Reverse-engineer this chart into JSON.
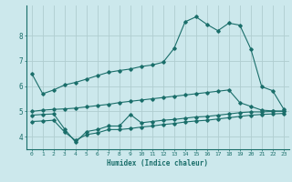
{
  "xlabel": "Humidex (Indice chaleur)",
  "ylabel": "",
  "background_color": "#cce8ec",
  "grid_color": "#b0cdd0",
  "line_color": "#1a6e6a",
  "xlim": [
    -0.5,
    23.5
  ],
  "ylim": [
    3.5,
    9.2
  ],
  "yticks": [
    4,
    5,
    6,
    7,
    8
  ],
  "xticks": [
    0,
    1,
    2,
    3,
    4,
    5,
    6,
    7,
    8,
    9,
    10,
    11,
    12,
    13,
    14,
    15,
    16,
    17,
    18,
    19,
    20,
    21,
    22,
    23
  ],
  "line1_x": [
    0,
    1,
    2,
    3,
    4,
    5,
    6,
    7,
    8,
    9,
    10,
    11,
    12,
    13,
    14,
    15,
    16,
    17,
    18,
    19,
    20,
    21,
    22,
    23
  ],
  "line1_y": [
    6.5,
    5.7,
    5.85,
    6.05,
    6.15,
    6.28,
    6.42,
    6.55,
    6.62,
    6.68,
    6.78,
    6.84,
    6.95,
    7.5,
    8.55,
    8.75,
    8.45,
    8.2,
    8.5,
    8.42,
    7.48,
    5.98,
    5.82,
    5.1
  ],
  "line2_x": [
    0,
    1,
    2,
    3,
    4,
    5,
    6,
    7,
    8,
    9,
    10,
    11,
    12,
    13,
    14,
    15,
    16,
    17,
    18,
    19,
    20,
    21,
    22,
    23
  ],
  "line2_y": [
    5.0,
    5.05,
    5.08,
    5.1,
    5.13,
    5.18,
    5.23,
    5.28,
    5.35,
    5.4,
    5.45,
    5.5,
    5.55,
    5.6,
    5.65,
    5.7,
    5.75,
    5.8,
    5.85,
    5.35,
    5.2,
    5.05,
    5.02,
    5.0
  ],
  "line3_x": [
    0,
    1,
    2,
    3,
    4,
    5,
    6,
    7,
    8,
    9,
    10,
    11,
    12,
    13,
    14,
    15,
    16,
    17,
    18,
    19,
    20,
    21,
    22,
    23
  ],
  "line3_y": [
    4.85,
    4.88,
    4.9,
    4.3,
    3.78,
    4.2,
    4.28,
    4.42,
    4.42,
    4.88,
    4.55,
    4.6,
    4.65,
    4.68,
    4.73,
    4.78,
    4.8,
    4.85,
    4.9,
    4.95,
    4.98,
    4.98,
    5.0,
    5.02
  ],
  "line4_x": [
    0,
    1,
    2,
    3,
    4,
    5,
    6,
    7,
    8,
    9,
    10,
    11,
    12,
    13,
    14,
    15,
    16,
    17,
    18,
    19,
    20,
    21,
    22,
    23
  ],
  "line4_y": [
    4.6,
    4.62,
    4.65,
    4.18,
    3.85,
    4.08,
    4.15,
    4.28,
    4.28,
    4.32,
    4.38,
    4.42,
    4.48,
    4.52,
    4.58,
    4.62,
    4.65,
    4.7,
    4.75,
    4.8,
    4.85,
    4.88,
    4.9,
    4.92
  ]
}
